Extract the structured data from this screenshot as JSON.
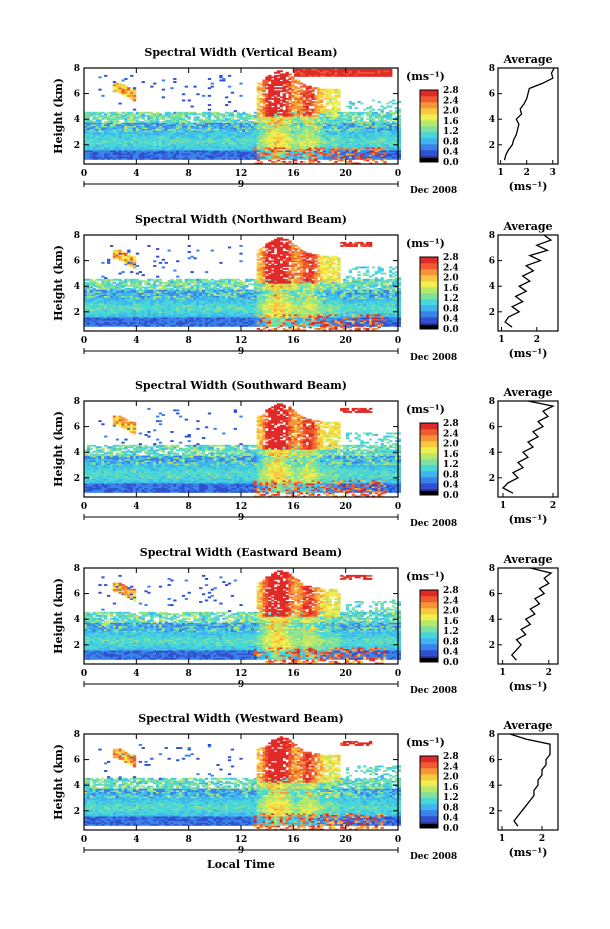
{
  "figure": {
    "xlabel": "Local Time",
    "date_label": "Dec 2008",
    "day_label": "9",
    "unit_label": "(ms⁻¹)",
    "height_axis_label": "Height (km)",
    "average_title": "Average"
  },
  "colormap": [
    "#2a2f8f",
    "#3050d0",
    "#3a82e8",
    "#3fb4ee",
    "#48d6d8",
    "#7fe0a0",
    "#b8e86a",
    "#f0ee50",
    "#f8c840",
    "#f89438",
    "#f05a30",
    "#e02a28"
  ],
  "chart_data": [
    {
      "type": "heatmap",
      "title": "Spectral Width (Vertical Beam)",
      "xlabel": "",
      "ylabel": "Height (km)",
      "x_ticks": [
        "0",
        "4",
        "8",
        "12",
        "16",
        "20",
        "0"
      ],
      "xlim": [
        0,
        24
      ],
      "ylim": [
        0.5,
        8
      ],
      "y_ticks": [
        "2",
        "4",
        "6",
        "8"
      ],
      "colorbar": {
        "label": "(ms⁻¹)",
        "ticks": [
          "2.8",
          "2.4",
          "2.0",
          "1.6",
          "1.2",
          "0.8",
          "0.4",
          "0.0"
        ],
        "range": [
          0,
          2.8
        ]
      },
      "average_profile": {
        "title": "Average",
        "xlabel": "(ms⁻¹)",
        "x_ticks": [
          "1",
          "2",
          "3"
        ],
        "xlim": [
          0.9,
          3.2
        ],
        "y_ticks": [
          "2",
          "4",
          "6",
          "8"
        ],
        "height": [
          0.8,
          1.2,
          1.6,
          2.0,
          2.4,
          2.8,
          3.2,
          3.6,
          4.0,
          4.4,
          4.8,
          5.2,
          5.6,
          6.0,
          6.4,
          6.8,
          7.2,
          7.6,
          8.0
        ],
        "value": [
          1.15,
          1.2,
          1.3,
          1.45,
          1.5,
          1.6,
          1.65,
          1.7,
          1.6,
          1.8,
          1.75,
          1.9,
          2.0,
          2.05,
          2.1,
          2.6,
          3.0,
          2.95,
          3.05
        ]
      }
    },
    {
      "type": "heatmap",
      "title": "Spectral Width (Northward Beam)",
      "xlabel": "",
      "ylabel": "Height (km)",
      "x_ticks": [
        "0",
        "4",
        "8",
        "12",
        "16",
        "20",
        "0"
      ],
      "xlim": [
        0,
        24
      ],
      "ylim": [
        0.5,
        8
      ],
      "y_ticks": [
        "2",
        "4",
        "6",
        "8"
      ],
      "colorbar": {
        "label": "(ms⁻¹)",
        "ticks": [
          "2.8",
          "2.4",
          "2.0",
          "1.6",
          "1.2",
          "0.8",
          "0.4",
          "0.0"
        ],
        "range": [
          0,
          2.8
        ]
      },
      "average_profile": {
        "title": "Average",
        "xlabel": "(ms⁻¹)",
        "x_ticks": [
          "1",
          "2"
        ],
        "xlim": [
          0.9,
          2.6
        ],
        "y_ticks": [
          "2",
          "4",
          "6",
          "8"
        ],
        "height": [
          0.8,
          1.2,
          1.6,
          2.0,
          2.4,
          2.8,
          3.2,
          3.6,
          4.0,
          4.4,
          4.8,
          5.2,
          5.6,
          6.0,
          6.4,
          6.8,
          7.2,
          7.6,
          8.0
        ],
        "value": [
          1.3,
          1.1,
          1.2,
          1.5,
          1.3,
          1.6,
          1.4,
          1.7,
          1.5,
          1.8,
          1.6,
          1.9,
          1.7,
          2.1,
          1.8,
          2.3,
          2.0,
          2.4,
          2.2
        ]
      }
    },
    {
      "type": "heatmap",
      "title": "Spectral Width (Southward Beam)",
      "xlabel": "",
      "ylabel": "Height (km)",
      "x_ticks": [
        "0",
        "4",
        "8",
        "12",
        "16",
        "20",
        "0"
      ],
      "xlim": [
        0,
        24
      ],
      "ylim": [
        0.5,
        8
      ],
      "y_ticks": [
        "2",
        "4",
        "6",
        "8"
      ],
      "colorbar": {
        "label": "(ms⁻¹)",
        "ticks": [
          "2.8",
          "2.4",
          "2.0",
          "1.6",
          "1.2",
          "0.8",
          "0.4",
          "0.0"
        ],
        "range": [
          0,
          2.8
        ]
      },
      "average_profile": {
        "title": "Average",
        "xlabel": "(ms⁻¹)",
        "x_ticks": [
          "1",
          "2"
        ],
        "xlim": [
          0.9,
          2.1
        ],
        "y_ticks": [
          "2",
          "4",
          "6",
          "8"
        ],
        "height": [
          0.8,
          1.2,
          1.6,
          2.0,
          2.4,
          2.8,
          3.2,
          3.6,
          4.0,
          4.4,
          4.8,
          5.2,
          5.6,
          6.0,
          6.4,
          6.8,
          7.2,
          7.6,
          8.0
        ],
        "value": [
          1.2,
          1.0,
          1.1,
          1.3,
          1.2,
          1.4,
          1.3,
          1.5,
          1.4,
          1.6,
          1.5,
          1.7,
          1.6,
          1.8,
          1.7,
          1.9,
          1.8,
          2.0,
          1.5
        ]
      }
    },
    {
      "type": "heatmap",
      "title": "Spectral Width (Eastward Beam)",
      "xlabel": "",
      "ylabel": "Height (km)",
      "x_ticks": [
        "0",
        "4",
        "8",
        "12",
        "16",
        "20",
        "0"
      ],
      "xlim": [
        0,
        24
      ],
      "ylim": [
        0.5,
        8
      ],
      "y_ticks": [
        "2",
        "4",
        "6",
        "8"
      ],
      "colorbar": {
        "label": "(ms⁻¹)",
        "ticks": [
          "2.8",
          "2.4",
          "2.0",
          "1.6",
          "1.2",
          "0.8",
          "0.4",
          "0.0"
        ],
        "range": [
          0,
          2.8
        ]
      },
      "average_profile": {
        "title": "Average",
        "xlabel": "(ms⁻¹)",
        "x_ticks": [
          "1",
          "2"
        ],
        "xlim": [
          0.9,
          2.2
        ],
        "y_ticks": [
          "2",
          "4",
          "6",
          "8"
        ],
        "height": [
          0.8,
          1.2,
          1.6,
          2.0,
          2.4,
          2.8,
          3.2,
          3.6,
          4.0,
          4.4,
          4.8,
          5.2,
          5.6,
          6.0,
          6.4,
          6.8,
          7.2,
          7.6,
          8.0
        ],
        "value": [
          1.3,
          1.2,
          1.3,
          1.4,
          1.3,
          1.5,
          1.4,
          1.6,
          1.5,
          1.7,
          1.6,
          1.8,
          1.7,
          1.9,
          1.8,
          2.0,
          1.9,
          2.05,
          1.6
        ]
      }
    },
    {
      "type": "heatmap",
      "title": "Spectral Width (Westward Beam)",
      "xlabel": "Local Time",
      "ylabel": "Height (km)",
      "x_ticks": [
        "0",
        "4",
        "8",
        "12",
        "16",
        "20",
        "0"
      ],
      "xlim": [
        0,
        24
      ],
      "ylim": [
        0.5,
        8
      ],
      "y_ticks": [
        "2",
        "4",
        "6",
        "8"
      ],
      "colorbar": {
        "label": "(ms⁻¹)",
        "ticks": [
          "2.8",
          "2.4",
          "2.0",
          "1.6",
          "1.2",
          "0.8",
          "0.4",
          "0.0"
        ],
        "range": [
          0,
          2.8
        ]
      },
      "average_profile": {
        "title": "Average",
        "xlabel": "(ms⁻¹)",
        "x_ticks": [
          "1",
          "2"
        ],
        "xlim": [
          0.9,
          2.4
        ],
        "y_ticks": [
          "2",
          "4",
          "6",
          "8"
        ],
        "height": [
          0.8,
          1.2,
          1.6,
          2.0,
          2.4,
          2.8,
          3.2,
          3.6,
          4.0,
          4.4,
          4.8,
          5.2,
          5.6,
          6.0,
          6.4,
          6.8,
          7.2,
          7.6,
          8.0
        ],
        "value": [
          1.4,
          1.3,
          1.4,
          1.5,
          1.6,
          1.7,
          1.8,
          1.8,
          1.9,
          1.9,
          2.0,
          2.0,
          2.1,
          2.1,
          2.2,
          2.2,
          2.2,
          1.6,
          1.2
        ]
      }
    }
  ]
}
